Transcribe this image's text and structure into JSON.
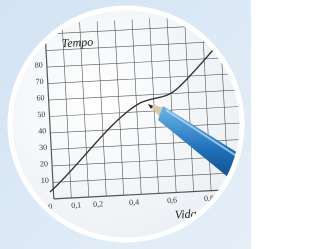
{
  "graph": {
    "y_title": "Tempo",
    "x_title": "Vida útil",
    "y_ticks": [
      "80",
      "70",
      "60",
      "50",
      "40",
      "30",
      "20",
      "10"
    ],
    "x_ticks": [
      "0",
      "0,1",
      "0,2",
      "0,4",
      "0,6",
      "0,8"
    ]
  }
}
